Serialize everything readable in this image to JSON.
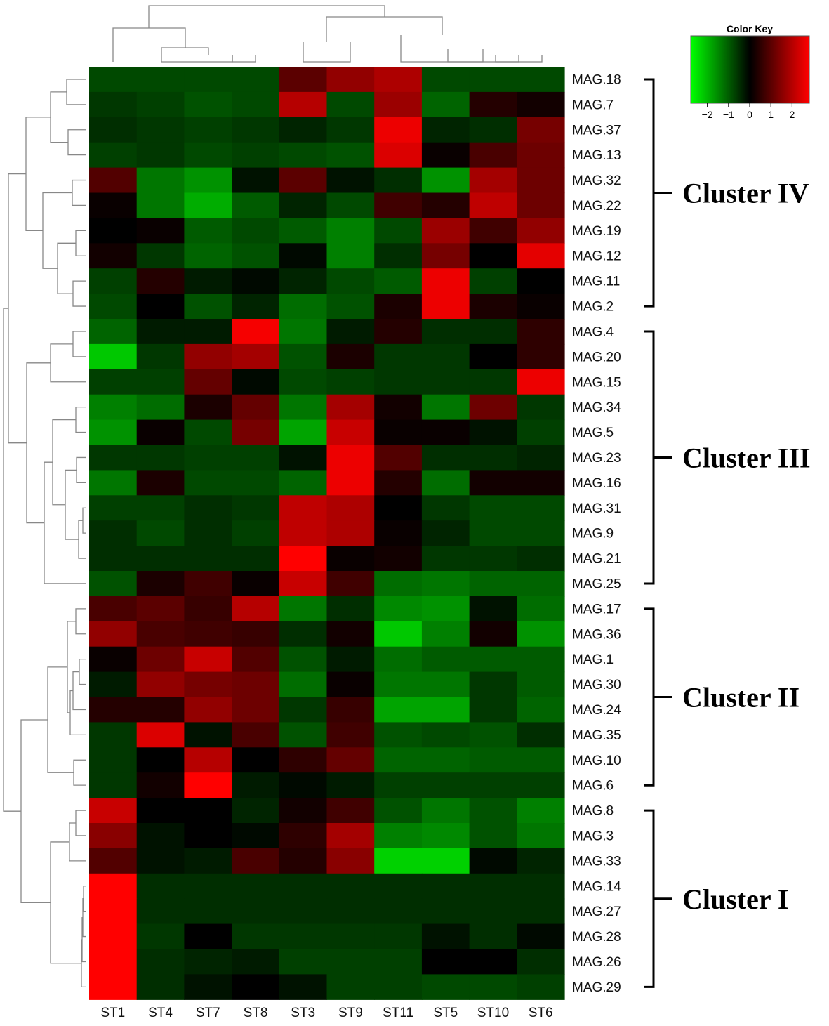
{
  "chart_data": {
    "type": "heatmap",
    "columns": [
      "ST1",
      "ST4",
      "ST7",
      "ST8",
      "ST3",
      "ST9",
      "ST11",
      "ST5",
      "ST10",
      "ST6"
    ],
    "rows": [
      "MAG.18",
      "MAG.7",
      "MAG.37",
      "MAG.13",
      "MAG.32",
      "MAG.22",
      "MAG.19",
      "MAG.12",
      "MAG.11",
      "MAG.2",
      "MAG.4",
      "MAG.20",
      "MAG.15",
      "MAG.34",
      "MAG.5",
      "MAG.23",
      "MAG.16",
      "MAG.31",
      "MAG.9",
      "MAG.21",
      "MAG.25",
      "MAG.17",
      "MAG.36",
      "MAG.1",
      "MAG.30",
      "MAG.24",
      "MAG.35",
      "MAG.10",
      "MAG.6",
      "MAG.8",
      "MAG.3",
      "MAG.33",
      "MAG.14",
      "MAG.27",
      "MAG.28",
      "MAG.26",
      "MAG.29"
    ],
    "values": [
      [
        -0.8,
        -0.8,
        -0.8,
        -0.8,
        1.0,
        1.6,
        1.9,
        -0.8,
        -0.8,
        -0.8
      ],
      [
        -0.6,
        -0.7,
        -0.9,
        -0.8,
        2.0,
        -0.8,
        1.7,
        -1.1,
        0.4,
        0.2
      ],
      [
        -0.5,
        -0.6,
        -0.7,
        -0.6,
        -0.4,
        -0.6,
        2.6,
        -0.4,
        -0.5,
        1.3
      ],
      [
        -0.7,
        -0.6,
        -0.8,
        -0.7,
        -0.8,
        -0.9,
        2.4,
        0.1,
        0.8,
        1.2
      ],
      [
        0.9,
        -1.3,
        -1.6,
        -0.2,
        1.0,
        -0.2,
        -0.5,
        -1.6,
        1.8,
        1.2
      ],
      [
        0.1,
        -1.3,
        -1.9,
        -1.0,
        -0.4,
        -0.8,
        0.7,
        0.4,
        2.1,
        1.2
      ],
      [
        0.0,
        0.1,
        -1.0,
        -0.8,
        -1.0,
        -1.4,
        -0.8,
        1.7,
        0.7,
        1.6
      ],
      [
        0.2,
        -0.6,
        -1.1,
        -0.9,
        -0.1,
        -1.4,
        -0.5,
        1.3,
        0.0,
        2.5
      ],
      [
        -0.7,
        0.4,
        -0.3,
        -0.1,
        -0.4,
        -0.8,
        -1.0,
        2.6,
        -0.7,
        0.0
      ],
      [
        -0.8,
        0.0,
        -0.9,
        -0.4,
        -1.2,
        -0.9,
        0.3,
        2.6,
        0.3,
        0.1
      ],
      [
        -1.1,
        -0.3,
        -0.3,
        2.7,
        -1.3,
        -0.3,
        0.4,
        -0.5,
        -0.5,
        0.5
      ],
      [
        -2.2,
        -0.6,
        1.6,
        1.8,
        -0.9,
        0.3,
        -0.6,
        -0.6,
        0.0,
        0.5
      ],
      [
        -0.7,
        -0.7,
        1.1,
        -0.1,
        -0.8,
        -0.7,
        -0.6,
        -0.6,
        -0.6,
        2.6
      ],
      [
        -1.4,
        -1.2,
        0.3,
        1.1,
        -1.3,
        1.8,
        0.2,
        -1.3,
        1.2,
        -0.6
      ],
      [
        -1.6,
        0.1,
        -0.8,
        1.3,
        -1.8,
        2.2,
        0.1,
        0.1,
        -0.2,
        -0.7
      ],
      [
        -0.6,
        -0.6,
        -0.7,
        -0.7,
        -0.2,
        2.6,
        0.9,
        -0.5,
        -0.5,
        -0.4
      ],
      [
        -1.3,
        0.3,
        -0.8,
        -0.8,
        -1.1,
        2.6,
        0.4,
        -1.2,
        0.2,
        0.2
      ],
      [
        -0.7,
        -0.7,
        -0.5,
        -0.6,
        2.1,
        1.9,
        0.0,
        -0.6,
        -0.8,
        -0.8
      ],
      [
        -0.5,
        -0.8,
        -0.5,
        -0.7,
        2.1,
        1.9,
        0.1,
        -0.4,
        -0.8,
        -0.8
      ],
      [
        -0.5,
        -0.5,
        -0.5,
        -0.5,
        2.8,
        0.1,
        0.2,
        -0.6,
        -0.6,
        -0.5
      ],
      [
        -0.9,
        0.3,
        0.7,
        0.1,
        2.2,
        0.7,
        -1.2,
        -1.3,
        -1.1,
        -1.1
      ],
      [
        0.8,
        1.0,
        0.6,
        2.0,
        -1.3,
        -0.5,
        -1.5,
        -1.6,
        -0.2,
        -1.2
      ],
      [
        1.6,
        0.8,
        0.7,
        0.6,
        -0.5,
        0.2,
        -2.2,
        -1.4,
        0.2,
        -1.6
      ],
      [
        0.1,
        1.2,
        2.2,
        0.9,
        -0.9,
        -0.3,
        -1.2,
        -1.0,
        -1.0,
        -1.0
      ],
      [
        -0.3,
        1.6,
        1.3,
        1.2,
        -1.2,
        0.1,
        -1.3,
        -1.3,
        -0.6,
        -1.0
      ],
      [
        0.4,
        0.4,
        1.6,
        1.2,
        -0.6,
        0.6,
        -1.8,
        -1.8,
        -0.6,
        -1.1
      ],
      [
        -0.6,
        2.4,
        -0.2,
        0.8,
        -0.9,
        0.7,
        -0.9,
        -0.8,
        -0.9,
        -0.5
      ],
      [
        -0.6,
        0.0,
        2.0,
        0.0,
        0.5,
        1.1,
        -1.1,
        -1.1,
        -1.0,
        -1.0
      ],
      [
        -0.6,
        0.2,
        2.8,
        -0.3,
        -0.1,
        -0.3,
        -0.7,
        -0.7,
        -0.7,
        -0.7
      ],
      [
        2.2,
        0.0,
        0.0,
        -0.4,
        0.2,
        0.7,
        -0.9,
        -1.3,
        -0.9,
        -1.4
      ],
      [
        1.5,
        -0.2,
        0.0,
        -0.1,
        0.5,
        1.8,
        -1.4,
        -1.5,
        -0.9,
        -1.3
      ],
      [
        0.9,
        -0.2,
        -0.3,
        0.8,
        0.4,
        1.5,
        -2.3,
        -2.3,
        -0.1,
        -0.4
      ],
      [
        2.8,
        -0.5,
        -0.5,
        -0.5,
        -0.5,
        -0.5,
        -0.5,
        -0.5,
        -0.5,
        -0.5
      ],
      [
        2.8,
        -0.5,
        -0.5,
        -0.5,
        -0.5,
        -0.5,
        -0.5,
        -0.5,
        -0.5,
        -0.5
      ],
      [
        2.8,
        -0.6,
        0.0,
        -0.6,
        -0.6,
        -0.6,
        -0.6,
        -0.2,
        -0.5,
        -0.1
      ],
      [
        2.8,
        -0.5,
        -0.4,
        -0.3,
        -0.7,
        -0.7,
        -0.7,
        0.0,
        0.0,
        -0.5
      ],
      [
        2.8,
        -0.5,
        -0.2,
        0.0,
        -0.2,
        -0.7,
        -0.7,
        -0.8,
        -0.8,
        -0.7
      ]
    ],
    "color_scale": {
      "low": "#00ff00",
      "mid": "#000000",
      "high": "#ff0000",
      "min": -2.8,
      "max": 2.8
    },
    "color_key": {
      "title": "Color Key",
      "ticks": [
        "−2",
        "−1",
        "0",
        "1",
        "2"
      ]
    },
    "clusters": [
      {
        "label": "Cluster IV",
        "first_row": 0,
        "last_row": 9
      },
      {
        "label": "Cluster III",
        "first_row": 10,
        "last_row": 20
      },
      {
        "label": "Cluster II",
        "first_row": 21,
        "last_row": 28
      },
      {
        "label": "Cluster I",
        "first_row": 29,
        "last_row": 36
      }
    ],
    "legend_position": "top-right"
  }
}
